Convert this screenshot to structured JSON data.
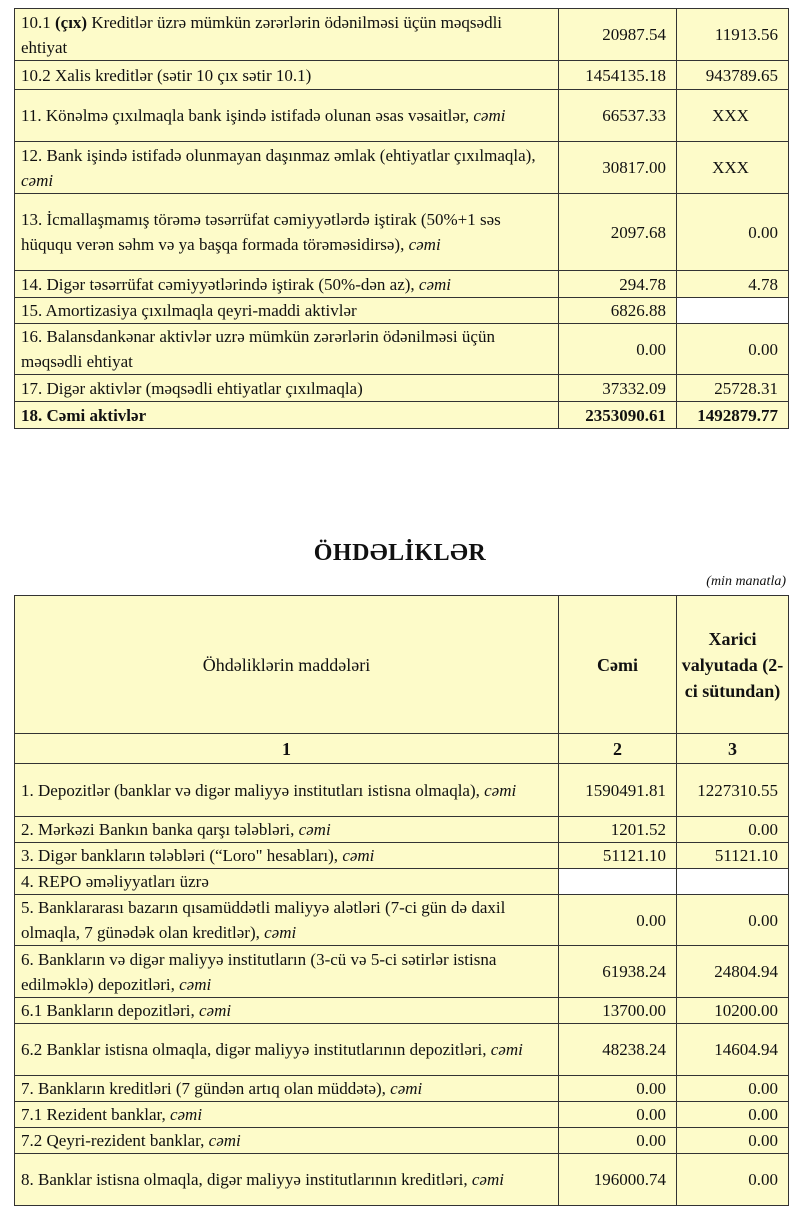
{
  "assets_rows": [
    {
      "pre": "10.1 ",
      "bold": "(çıx)",
      "label": " Kreditlər üzrə mümkün zərərlərin ödənilməsi üçün məqsədli ehtiyat",
      "italic": "",
      "total": "20987.54",
      "foreign": "11913.56"
    },
    {
      "label": "10.2 Xalis kreditlər (sətir 10 çıx sətir 10.1)",
      "italic": "",
      "total": "1454135.18",
      "foreign": "943789.65"
    },
    {
      "label": "11. Könəlmə çıxılmaqla bank işində istifadə olunan əsas vəsaitlər, ",
      "italic": "cəmi",
      "total": "66537.33",
      "foreign": "XXX"
    },
    {
      "label": "12. Bank işində istifadə olunmayan daşınmaz əmlak (ehtiyatlar çıxılmaqla), ",
      "italic": "cəmi",
      "total": "30817.00",
      "foreign": "XXX"
    },
    {
      "label": "13. İcmallaşmamış törəmə təsərrüfat cəmiyyətlərdə iştirak (50%+1 səs hüququ verən səhm və ya başqa formada törəməsidirsə), ",
      "italic": "cəmi",
      "total": "2097.68",
      "foreign": "0.00"
    },
    {
      "label": "14. Digər təsərrüfat cəmiyyətlərində iştirak (50%-dən az), ",
      "italic": "cəmi",
      "total": "294.78",
      "foreign": "4.78"
    },
    {
      "label": "15. Amortizasiya çıxılmaqla qeyri-maddi aktivlər",
      "italic": "",
      "total": "6826.88",
      "foreign": "",
      "blank": true
    },
    {
      "label": "16. Balansdankənar aktivlər uzrə mümkün zərərlərin ödənilməsi üçün məqsədli ehtiyat",
      "italic": "",
      "total": "0.00",
      "foreign": "0.00"
    },
    {
      "label": "17. Digər aktivlər (məqsədli ehtiyatlar çıxılmaqla)",
      "italic": "",
      "total": "37332.09",
      "foreign": "25728.31"
    },
    {
      "label": "18. Cəmi aktivlər",
      "italic": "",
      "total": "2353090.61",
      "foreign": "1492879.77",
      "is_total": true
    }
  ],
  "liabilities": {
    "title": "ÖHDƏLİKLƏR",
    "unit": "(min manatla)",
    "headers": {
      "items": "Öhdəliklərin maddələri",
      "total": "Cəmi",
      "foreign": "Xarici valyutada (2-ci sütundan)"
    },
    "col_numbers": [
      "1",
      "2",
      "3"
    ],
    "rows": [
      {
        "label": "1. Depozitlər (banklar və digər maliyyə institutları istisna olmaqla), ",
        "italic": "cəmi",
        "total": "1590491.81",
        "foreign": "1227310.55"
      },
      {
        "label": "2. Mərkəzi Bankın banka qarşı tələbləri, ",
        "italic": "cəmi",
        "total": "1201.52",
        "foreign": "0.00"
      },
      {
        "label": "3. Digər bankların tələbləri (“Loro\" hesabları), ",
        "italic": "cəmi",
        "total": "51121.10",
        "foreign": "51121.10"
      },
      {
        "label": "4. REPO əməliyyatları  üzrə",
        "italic": "",
        "total": "",
        "foreign": "",
        "blank": true
      },
      {
        "label": "5. Banklararası bazarın qısamüddətli maliyyə alətləri (7-ci gün də daxil olmaqla, 7 günədək olan kreditlər), ",
        "italic": "cəmi",
        "total": "0.00",
        "foreign": "0.00"
      },
      {
        "label": "6. Bankların və digər maliyyə institutların (3-cü və 5-ci sətirlər istisna edilməklə) depozitləri, ",
        "italic": "cəmi",
        "total": "61938.24",
        "foreign": "24804.94"
      },
      {
        "label": "6.1  Bankların depozitləri, ",
        "italic": "cəmi",
        "total": "13700.00",
        "foreign": "10200.00"
      },
      {
        "label": "6.2 Banklar istisna olmaqla, digər maliyyə institutlarının depozitləri, ",
        "italic": "cəmi",
        "total": "48238.24",
        "foreign": "14604.94"
      },
      {
        "label": "7. Bankların kreditləri (7 gündən artıq olan müddətə), ",
        "italic": "cəmi",
        "total": "0.00",
        "foreign": "0.00"
      },
      {
        "label": "7.1 Rezident banklar, ",
        "italic": "cəmi",
        "total": "0.00",
        "foreign": "0.00"
      },
      {
        "label": "7.2 Qeyri-rezident banklar, ",
        "italic": "cəmi",
        "total": "0.00",
        "foreign": "0.00"
      },
      {
        "label": "8. Banklar istisna olmaqla, digər maliyyə institutlarının kreditləri, ",
        "italic": "cəmi",
        "total": "196000.74",
        "foreign": "0.00"
      }
    ]
  },
  "colors": {
    "cell_bg": "#fdfbc9",
    "border": "#333333"
  }
}
